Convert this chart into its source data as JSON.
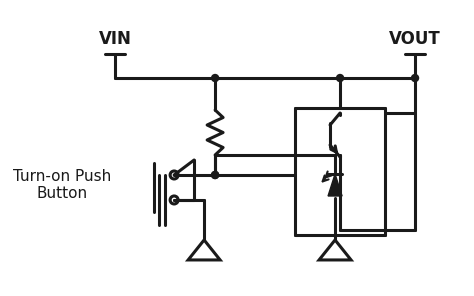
{
  "bg_color": "#ffffff",
  "line_color": "#1a1a1a",
  "line_width": 2.2,
  "vin_label": "VIN",
  "vout_label": "VOUT",
  "button_label": "Turn-on Push\nButton",
  "font_size": 11
}
